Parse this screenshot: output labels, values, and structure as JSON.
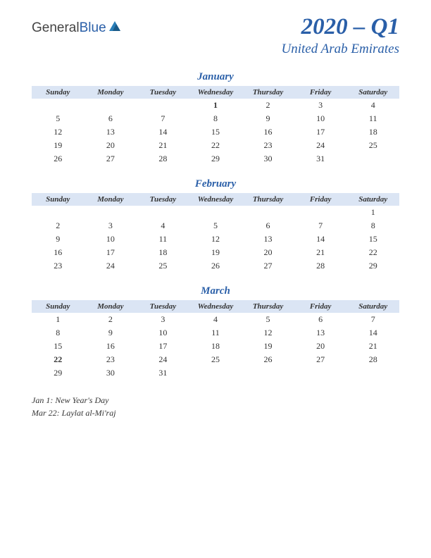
{
  "logo": {
    "text1": "General",
    "text2": "Blue"
  },
  "title": "2020 – Q1",
  "subtitle": "United Arab Emirates",
  "day_headers": [
    "Sunday",
    "Monday",
    "Tuesday",
    "Wednesday",
    "Thursday",
    "Friday",
    "Saturday"
  ],
  "header_bg": "#dbe5f4",
  "accent_color": "#2a5fa8",
  "holiday_color": "#b02020",
  "months": [
    {
      "name": "January",
      "weeks": [
        [
          "",
          "",
          "",
          "1",
          "2",
          "3",
          "4"
        ],
        [
          "5",
          "6",
          "7",
          "8",
          "9",
          "10",
          "11"
        ],
        [
          "12",
          "13",
          "14",
          "15",
          "16",
          "17",
          "18"
        ],
        [
          "19",
          "20",
          "21",
          "22",
          "23",
          "24",
          "25"
        ],
        [
          "26",
          "27",
          "28",
          "29",
          "30",
          "31",
          ""
        ]
      ],
      "holidays": [
        "1"
      ]
    },
    {
      "name": "February",
      "weeks": [
        [
          "",
          "",
          "",
          "",
          "",
          "",
          "1"
        ],
        [
          "2",
          "3",
          "4",
          "5",
          "6",
          "7",
          "8"
        ],
        [
          "9",
          "10",
          "11",
          "12",
          "13",
          "14",
          "15"
        ],
        [
          "16",
          "17",
          "18",
          "19",
          "20",
          "21",
          "22"
        ],
        [
          "23",
          "24",
          "25",
          "26",
          "27",
          "28",
          "29"
        ]
      ],
      "holidays": []
    },
    {
      "name": "March",
      "weeks": [
        [
          "1",
          "2",
          "3",
          "4",
          "5",
          "6",
          "7"
        ],
        [
          "8",
          "9",
          "10",
          "11",
          "12",
          "13",
          "14"
        ],
        [
          "15",
          "16",
          "17",
          "18",
          "19",
          "20",
          "21"
        ],
        [
          "22",
          "23",
          "24",
          "25",
          "26",
          "27",
          "28"
        ],
        [
          "29",
          "30",
          "31",
          "",
          "",
          "",
          ""
        ]
      ],
      "holidays": [
        "22"
      ]
    }
  ],
  "notes": [
    "Jan 1: New Year's Day",
    "Mar 22: Laylat al-Mi'raj"
  ]
}
